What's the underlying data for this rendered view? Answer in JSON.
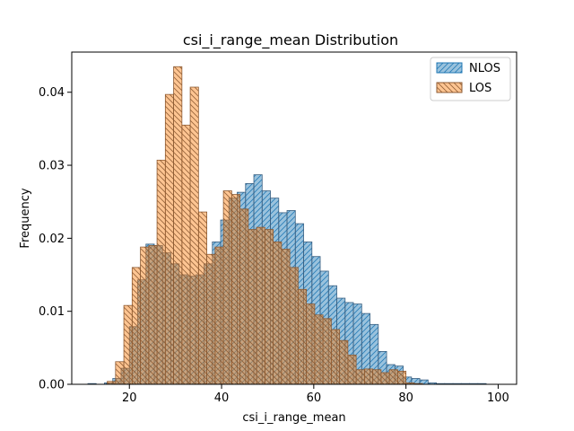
{
  "chart_data": {
    "type": "bar",
    "title": "csi_i_range_mean Distribution",
    "xlabel": "csi_i_range_mean",
    "ylabel": "Frequency",
    "xlim": [
      7.5,
      104
    ],
    "ylim": [
      0,
      0.0455
    ],
    "xticks": [
      20,
      40,
      60,
      80,
      100
    ],
    "yticks": [
      0.0,
      0.01,
      0.02,
      0.03,
      0.04
    ],
    "ytick_labels": [
      "0.00",
      "0.01",
      "0.02",
      "0.03",
      "0.04"
    ],
    "legend_position": "upper right",
    "series": [
      {
        "name": "NLOS",
        "color": "#1f77b4",
        "bin_width": 1.8,
        "bins": [
          [
            11.0,
            0.0001
          ],
          [
            12.8,
            0.0
          ],
          [
            14.6,
            0.0002
          ],
          [
            16.4,
            0.0008
          ],
          [
            18.2,
            0.0022
          ],
          [
            20.0,
            0.0079
          ],
          [
            21.8,
            0.0143
          ],
          [
            23.6,
            0.0192
          ],
          [
            25.4,
            0.019
          ],
          [
            27.2,
            0.018
          ],
          [
            29.0,
            0.0165
          ],
          [
            30.8,
            0.015
          ],
          [
            32.6,
            0.0148
          ],
          [
            34.4,
            0.015
          ],
          [
            36.2,
            0.0165
          ],
          [
            38.0,
            0.0195
          ],
          [
            39.8,
            0.0225
          ],
          [
            41.6,
            0.0255
          ],
          [
            43.4,
            0.0263
          ],
          [
            45.2,
            0.0275
          ],
          [
            47.0,
            0.0287
          ],
          [
            48.8,
            0.0265
          ],
          [
            50.6,
            0.0255
          ],
          [
            52.4,
            0.0235
          ],
          [
            54.2,
            0.0238
          ],
          [
            56.0,
            0.022
          ],
          [
            57.8,
            0.0195
          ],
          [
            59.6,
            0.0175
          ],
          [
            61.4,
            0.0155
          ],
          [
            63.2,
            0.0135
          ],
          [
            65.0,
            0.0118
          ],
          [
            66.8,
            0.0112
          ],
          [
            68.6,
            0.011
          ],
          [
            70.4,
            0.0097
          ],
          [
            72.2,
            0.0082
          ],
          [
            74.0,
            0.0045
          ],
          [
            75.8,
            0.0027
          ],
          [
            77.6,
            0.0025
          ],
          [
            79.4,
            0.001
          ],
          [
            81.2,
            0.0008
          ],
          [
            83.0,
            0.0006
          ],
          [
            84.8,
            0.0002
          ],
          [
            86.6,
            0.0001
          ],
          [
            88.4,
            0.0001
          ],
          [
            90.2,
            0.0001
          ],
          [
            92.0,
            0.0001
          ],
          [
            93.8,
            0.0001
          ],
          [
            95.6,
            0.0001
          ],
          [
            97.4,
            0.0
          ],
          [
            99.2,
            0.0
          ]
        ]
      },
      {
        "name": "LOS",
        "color": "#ff7f0e",
        "bin_width": 1.8,
        "bins": [
          [
            15.2,
            0.0004
          ],
          [
            17.0,
            0.0031
          ],
          [
            18.8,
            0.0108
          ],
          [
            20.6,
            0.016
          ],
          [
            22.4,
            0.0188
          ],
          [
            24.2,
            0.019
          ],
          [
            26.0,
            0.0307
          ],
          [
            27.8,
            0.0397
          ],
          [
            29.6,
            0.0435
          ],
          [
            31.4,
            0.0355
          ],
          [
            33.2,
            0.0407
          ],
          [
            35.0,
            0.0236
          ],
          [
            36.8,
            0.0178
          ],
          [
            38.6,
            0.0188
          ],
          [
            40.4,
            0.0265
          ],
          [
            42.2,
            0.026
          ],
          [
            44.0,
            0.024
          ],
          [
            45.8,
            0.0212
          ],
          [
            47.6,
            0.0215
          ],
          [
            49.4,
            0.0212
          ],
          [
            51.2,
            0.0195
          ],
          [
            53.0,
            0.0185
          ],
          [
            54.8,
            0.016
          ],
          [
            56.6,
            0.013
          ],
          [
            58.4,
            0.011
          ],
          [
            60.2,
            0.0095
          ],
          [
            62.0,
            0.009
          ],
          [
            63.8,
            0.0075
          ],
          [
            65.6,
            0.006
          ],
          [
            67.4,
            0.004
          ],
          [
            69.2,
            0.002
          ],
          [
            71.0,
            0.0021
          ],
          [
            72.8,
            0.002
          ],
          [
            74.6,
            0.0016
          ],
          [
            76.4,
            0.002
          ],
          [
            78.2,
            0.0018
          ],
          [
            80.0,
            0.0002
          ],
          [
            81.8,
            0.0001
          ]
        ]
      }
    ]
  }
}
